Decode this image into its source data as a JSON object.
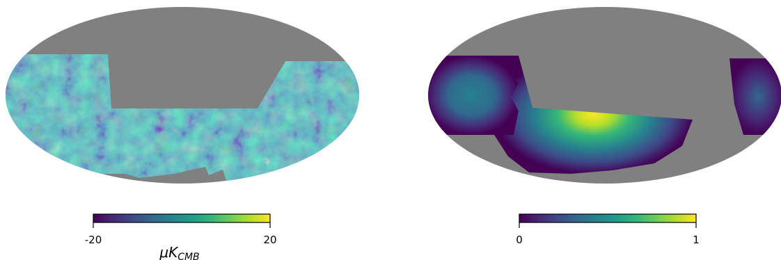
{
  "maps": [
    {
      "name": "cmb-temperature-map",
      "colorbar": {
        "min_label": "-20",
        "max_label": "20",
        "unit_main": "μK",
        "unit_sub": "CMB",
        "colormap": "viridis",
        "range": [
          -20,
          20
        ]
      },
      "mask_color": "#808080"
    },
    {
      "name": "smooth-mask-map",
      "colorbar": {
        "min_label": "0",
        "max_label": "1",
        "colormap": "viridis",
        "range": [
          0,
          1
        ]
      },
      "mask_color": "#808080"
    }
  ],
  "colors": {
    "viridis_stops": [
      "#440154",
      "#482878",
      "#3e4989",
      "#31688e",
      "#26828e",
      "#1f9e89",
      "#35b779",
      "#6ece58",
      "#b5de2b",
      "#fde725"
    ],
    "mask": "#808080",
    "background": "#ffffff"
  }
}
